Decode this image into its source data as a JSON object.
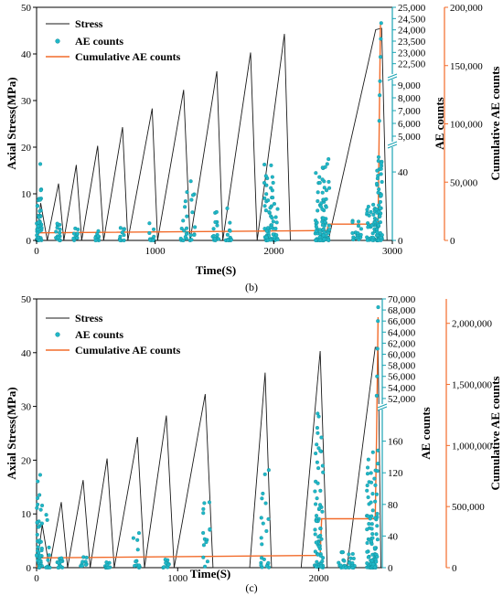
{
  "colors": {
    "stress": "#1a1a1a",
    "ae": "#1fb7c7",
    "ae_edge": "#0f7f8c",
    "cumulative": "#f26b2a",
    "axis": "#000000"
  },
  "chart_data": [
    {
      "type": "line",
      "panel_label": "(b)",
      "xlabel": "Time(S)",
      "ylabel_left": "Axial Stress(MPa)",
      "ylabel_ae": "AE counts",
      "ylabel_cum": "Cumulative AE counts",
      "xlim": [
        0,
        3000
      ],
      "xticks": [
        0,
        1000,
        2000,
        3000
      ],
      "xtick_labels": [
        "0",
        "1000",
        "2000",
        "3000"
      ],
      "ylim_stress": [
        0,
        50
      ],
      "yticks_stress": [
        0,
        10,
        20,
        30,
        40,
        50
      ],
      "ae_axis": {
        "lower_ticks": [
          0,
          40
        ],
        "lower_range": [
          0,
          55
        ],
        "middle_ticks": [
          5000,
          6000,
          7000,
          8000,
          9000
        ],
        "middle_labels": [
          "5,000",
          "6,000",
          "7,000",
          "8,000",
          "9,000"
        ],
        "middle_range": [
          4500,
          9500
        ],
        "upper_ticks": [
          22500,
          23000,
          23500,
          24000,
          24500,
          25000
        ],
        "upper_labels": [
          "22,500",
          "23,000",
          "23,500",
          "24,000",
          "24,500",
          "25,000"
        ],
        "upper_range": [
          22000,
          25000
        ]
      },
      "cum_axis": {
        "ylim": [
          0,
          200000
        ],
        "ticks": [
          50000,
          100000,
          150000,
          200000
        ],
        "labels": [
          "50,000",
          "100,000",
          "150,000",
          "200,000"
        ]
      },
      "legend": [
        "Stress",
        "AE counts",
        "Cumulative AE counts"
      ],
      "stress_series": {
        "name": "Stress",
        "t": [
          0,
          35,
          90,
          185,
          230,
          335,
          380,
          515,
          565,
          725,
          770,
          975,
          1020,
          1240,
          1295,
          1520,
          1570,
          1805,
          1860,
          2090,
          2140,
          2400,
          2460,
          2860,
          2910,
          2955
        ],
        "y": [
          0,
          8,
          0,
          12.2,
          0,
          16.2,
          0,
          20.3,
          0,
          24.3,
          0,
          28.3,
          0,
          32.3,
          0,
          36.3,
          0,
          40.3,
          0,
          44.3,
          0,
          0,
          0,
          45.2,
          45.5,
          0
        ]
      },
      "cumulative_series": {
        "name": "Cumulative AE counts",
        "t": [
          0,
          20,
          2450,
          2460,
          2880,
          2890,
          2900
        ],
        "y": [
          0,
          6500,
          8500,
          14000,
          14000,
          100000,
          185000
        ]
      },
      "ae_bursts": [
        {
          "t": 15,
          "peak": 48,
          "spread": 30,
          "n": 60
        },
        {
          "t": 180,
          "peak": 12,
          "spread": 20,
          "n": 14
        },
        {
          "t": 330,
          "peak": 7,
          "spread": 20,
          "n": 10
        },
        {
          "t": 510,
          "peak": 8,
          "spread": 20,
          "n": 10
        },
        {
          "t": 720,
          "peak": 9,
          "spread": 20,
          "n": 10
        },
        {
          "t": 970,
          "peak": 12,
          "spread": 25,
          "n": 12
        },
        {
          "t": 1240,
          "peak": 30,
          "spread": 30,
          "n": 16
        },
        {
          "t": 1310,
          "peak": 35,
          "spread": 25,
          "n": 12
        },
        {
          "t": 1510,
          "peak": 18,
          "spread": 25,
          "n": 16
        },
        {
          "t": 1620,
          "peak": 20,
          "spread": 25,
          "n": 14
        },
        {
          "t": 1960,
          "peak": 45,
          "spread": 40,
          "n": 40
        },
        {
          "t": 2000,
          "peak": 35,
          "spread": 35,
          "n": 28
        },
        {
          "t": 2390,
          "peak": 40,
          "spread": 40,
          "n": 45
        },
        {
          "t": 2440,
          "peak": 50,
          "spread": 30,
          "n": 45
        },
        {
          "t": 2700,
          "peak": 14,
          "spread": 40,
          "n": 18
        },
        {
          "t": 2820,
          "peak": 22,
          "spread": 35,
          "n": 35
        },
        {
          "t": 2890,
          "peak": 52,
          "spread": 25,
          "n": 70
        }
      ],
      "ae_upper_points": [
        {
          "t": 2890,
          "v": 6200
        },
        {
          "t": 2893,
          "v": 8200
        },
        {
          "t": 2896,
          "v": 9300
        },
        {
          "t": 2900,
          "v": 22800
        },
        {
          "t": 2903,
          "v": 23600
        },
        {
          "t": 2906,
          "v": 24300
        }
      ]
    },
    {
      "type": "line",
      "panel_label": "(c)",
      "xlabel": "Time(S)",
      "ylabel_left": "Axial Stress(MPa)",
      "ylabel_ae": "AE counts",
      "ylabel_cum": "Cumulative AE counts",
      "xlim": [
        0,
        2450
      ],
      "xticks": [
        0,
        1000,
        2000
      ],
      "xtick_labels": [
        "0",
        "1000",
        "2000"
      ],
      "ylim_stress": [
        0,
        50
      ],
      "yticks_stress": [
        0,
        10,
        20,
        30,
        40,
        50
      ],
      "ae_axis": {
        "lower_ticks": [
          0,
          40,
          80,
          120,
          160
        ],
        "lower_range": [
          0,
          200
        ],
        "upper_ticks": [
          52000,
          54000,
          56000,
          58000,
          60000,
          62000,
          64000,
          66000,
          68000,
          70000
        ],
        "upper_labels": [
          "52,000",
          "54,000",
          "56,000",
          "58,000",
          "60,000",
          "62,000",
          "64,000",
          "66,000",
          "68,000",
          "70,000"
        ],
        "upper_range": [
          51000,
          70000
        ]
      },
      "cum_axis": {
        "ylim": [
          0,
          2200000
        ],
        "ticks": [
          500000,
          1000000,
          1500000,
          2000000
        ],
        "labels": [
          "500,000",
          "1,000,000",
          "1,500,000",
          "2,000,000"
        ]
      },
      "legend": [
        "Stress",
        "AE counts",
        "Cumulative AE counts"
      ],
      "stress_series": {
        "name": "Stress",
        "t": [
          0,
          40,
          90,
          175,
          220,
          330,
          380,
          500,
          550,
          715,
          765,
          920,
          975,
          1195,
          1250,
          1455,
          1510,
          1620,
          1665,
          1820,
          1875,
          2010,
          2060,
          2200,
          2400,
          2420,
          2440
        ],
        "y": [
          0,
          8,
          0,
          12.2,
          0,
          16.3,
          0,
          20.3,
          0,
          24.3,
          0,
          28.3,
          0,
          32.3,
          0,
          0,
          0,
          36.3,
          0,
          0,
          0,
          40.3,
          0,
          0,
          41,
          41,
          0
        ]
      },
      "cumulative_series": {
        "name": "Cumulative AE counts",
        "t": [
          0,
          20,
          2010,
          2020,
          2400,
          2410,
          2420
        ],
        "y": [
          0,
          80000,
          100000,
          400000,
          400000,
          1100000,
          2050000
        ]
      },
      "ae_bursts": [
        {
          "t": 10,
          "peak": 130,
          "spread": 30,
          "n": 60
        },
        {
          "t": 80,
          "peak": 185,
          "spread": 15,
          "n": 10
        },
        {
          "t": 170,
          "peak": 30,
          "spread": 25,
          "n": 14
        },
        {
          "t": 330,
          "peak": 15,
          "spread": 25,
          "n": 10
        },
        {
          "t": 500,
          "peak": 12,
          "spread": 25,
          "n": 10
        },
        {
          "t": 710,
          "peak": 50,
          "spread": 25,
          "n": 12
        },
        {
          "t": 920,
          "peak": 12,
          "spread": 25,
          "n": 10
        },
        {
          "t": 1200,
          "peak": 90,
          "spread": 30,
          "n": 14
        },
        {
          "t": 1620,
          "peak": 125,
          "spread": 30,
          "n": 20
        },
        {
          "t": 2000,
          "peak": 195,
          "spread": 30,
          "n": 70
        },
        {
          "t": 2200,
          "peak": 20,
          "spread": 60,
          "n": 30
        },
        {
          "t": 2380,
          "peak": 150,
          "spread": 40,
          "n": 90
        }
      ],
      "ae_upper_points": [
        {
          "t": 2410,
          "v": 52500
        },
        {
          "t": 2413,
          "v": 56000
        },
        {
          "t": 2416,
          "v": 61000
        },
        {
          "t": 2419,
          "v": 66000
        },
        {
          "t": 2421,
          "v": 68500
        }
      ]
    }
  ]
}
